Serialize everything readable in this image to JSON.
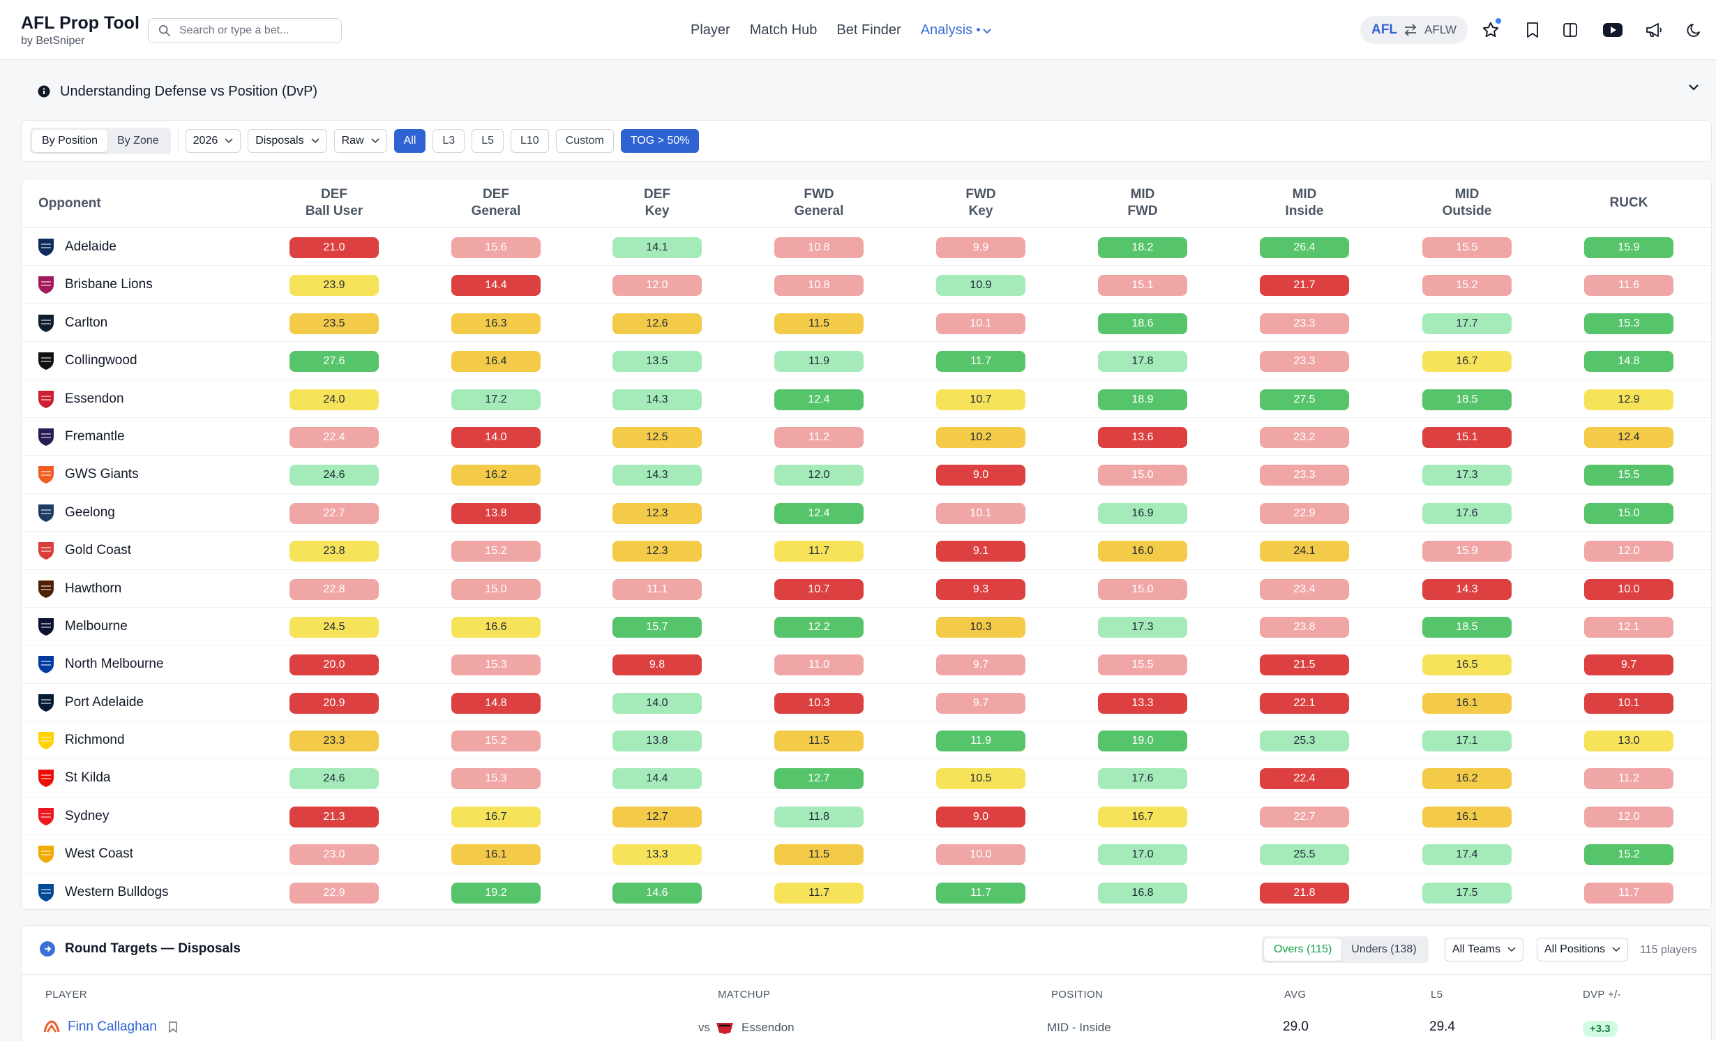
{
  "app": {
    "title": "AFL Prop Tool",
    "subtitle": "by BetSniper"
  },
  "search": {
    "placeholder": "Search or type a bet..."
  },
  "nav": {
    "links": [
      "Player",
      "Match Hub",
      "Bet Finder",
      "Analysis"
    ],
    "active": "Analysis"
  },
  "league": {
    "active": "AFL",
    "other": "AFLW"
  },
  "toolbar_icons": [
    "star-icon",
    "bookmark-icon",
    "columns-icon",
    "youtube-icon",
    "megaphone-icon",
    "moon-icon"
  ],
  "info": {
    "title": "Understanding Defense vs Position (DvP)"
  },
  "filters": {
    "view_options": [
      "By Position",
      "By Zone"
    ],
    "view_selected": "By Position",
    "season": "2026",
    "stat": "Disposals",
    "mode": "Raw",
    "ranges": [
      "All",
      "L3",
      "L5",
      "L10",
      "Custom"
    ],
    "range_selected": "All",
    "tog": "TOG > 50%"
  },
  "dvp": {
    "opponent_header": "Opponent",
    "columns": [
      {
        "line1": "DEF",
        "line2": "Ball User"
      },
      {
        "line1": "DEF",
        "line2": "General"
      },
      {
        "line1": "DEF",
        "line2": "Key"
      },
      {
        "line1": "FWD",
        "line2": "General"
      },
      {
        "line1": "FWD",
        "line2": "Key"
      },
      {
        "line1": "MID",
        "line2": "FWD"
      },
      {
        "line1": "MID",
        "line2": "Inside"
      },
      {
        "line1": "MID",
        "line2": "Outside"
      },
      {
        "line1": "",
        "line2": "RUCK"
      }
    ],
    "colors": {
      "red": "#dc4040",
      "lred": "#f1a6a6",
      "yel": "#f7e35a",
      "org": "#f4cb48",
      "lgrn": "#a5ebba",
      "grn": "#56c46a"
    },
    "rows": [
      {
        "team": "Adelaide",
        "logo": "#0f2a5c",
        "values": [
          "21.0",
          "15.6",
          "14.1",
          "10.8",
          "9.9",
          "18.2",
          "26.4",
          "15.5",
          "15.9"
        ],
        "colors": [
          "red",
          "lred",
          "lgrn",
          "lred",
          "lred",
          "grn",
          "grn",
          "lred",
          "grn"
        ]
      },
      {
        "team": "Brisbane Lions",
        "logo": "#a3195b",
        "values": [
          "23.9",
          "14.4",
          "12.0",
          "10.8",
          "10.9",
          "15.1",
          "21.7",
          "15.2",
          "11.6"
        ],
        "colors": [
          "yel",
          "red",
          "lred",
          "lred",
          "lgrn",
          "lred",
          "red",
          "lred",
          "lred"
        ]
      },
      {
        "team": "Carlton",
        "logo": "#0e1e2d",
        "values": [
          "23.5",
          "16.3",
          "12.6",
          "11.5",
          "10.1",
          "18.6",
          "23.3",
          "17.7",
          "15.3"
        ],
        "colors": [
          "org",
          "org",
          "org",
          "org",
          "lred",
          "grn",
          "lred",
          "lgrn",
          "grn"
        ]
      },
      {
        "team": "Collingwood",
        "logo": "#111111",
        "values": [
          "27.6",
          "16.4",
          "13.5",
          "11.9",
          "11.7",
          "17.8",
          "23.3",
          "16.7",
          "14.8"
        ],
        "colors": [
          "grn",
          "org",
          "lgrn",
          "lgrn",
          "grn",
          "lgrn",
          "lred",
          "yel",
          "grn"
        ]
      },
      {
        "team": "Essendon",
        "logo": "#cc2031",
        "values": [
          "24.0",
          "17.2",
          "14.3",
          "12.4",
          "10.7",
          "18.9",
          "27.5",
          "18.5",
          "12.9"
        ],
        "colors": [
          "yel",
          "lgrn",
          "lgrn",
          "grn",
          "yel",
          "grn",
          "grn",
          "grn",
          "yel"
        ]
      },
      {
        "team": "Fremantle",
        "logo": "#2a1a54",
        "values": [
          "22.4",
          "14.0",
          "12.5",
          "11.2",
          "10.2",
          "13.6",
          "23.2",
          "15.1",
          "12.4"
        ],
        "colors": [
          "lred",
          "red",
          "org",
          "lred",
          "org",
          "red",
          "lred",
          "red",
          "org"
        ]
      },
      {
        "team": "GWS Giants",
        "logo": "#f15c22",
        "values": [
          "24.6",
          "16.2",
          "14.3",
          "12.0",
          "9.0",
          "15.0",
          "23.3",
          "17.3",
          "15.5"
        ],
        "colors": [
          "lgrn",
          "org",
          "lgrn",
          "lgrn",
          "red",
          "lred",
          "lred",
          "lgrn",
          "grn"
        ]
      },
      {
        "team": "Geelong",
        "logo": "#1c3c63",
        "values": [
          "22.7",
          "13.8",
          "12.3",
          "12.4",
          "10.1",
          "16.9",
          "22.9",
          "17.6",
          "15.0"
        ],
        "colors": [
          "lred",
          "red",
          "org",
          "grn",
          "lred",
          "lgrn",
          "lred",
          "lgrn",
          "grn"
        ]
      },
      {
        "team": "Gold Coast",
        "logo": "#d93e39",
        "values": [
          "23.8",
          "15.2",
          "12.3",
          "11.7",
          "9.1",
          "16.0",
          "24.1",
          "15.9",
          "12.0"
        ],
        "colors": [
          "yel",
          "lred",
          "org",
          "yel",
          "red",
          "org",
          "org",
          "lred",
          "lred"
        ]
      },
      {
        "team": "Hawthorn",
        "logo": "#4d2004",
        "values": [
          "22.8",
          "15.0",
          "11.1",
          "10.7",
          "9.3",
          "15.0",
          "23.4",
          "14.3",
          "10.0"
        ],
        "colors": [
          "lred",
          "lred",
          "lred",
          "red",
          "red",
          "lred",
          "lred",
          "red",
          "red"
        ]
      },
      {
        "team": "Melbourne",
        "logo": "#0f1131",
        "values": [
          "24.5",
          "16.6",
          "15.7",
          "12.2",
          "10.3",
          "17.3",
          "23.8",
          "18.5",
          "12.1"
        ],
        "colors": [
          "yel",
          "yel",
          "grn",
          "grn",
          "org",
          "lgrn",
          "lred",
          "grn",
          "lred"
        ]
      },
      {
        "team": "North Melbourne",
        "logo": "#013b9f",
        "values": [
          "20.0",
          "15.3",
          "9.8",
          "11.0",
          "9.7",
          "15.5",
          "21.5",
          "16.5",
          "9.7"
        ],
        "colors": [
          "red",
          "lred",
          "red",
          "lred",
          "lred",
          "lred",
          "red",
          "yel",
          "red"
        ]
      },
      {
        "team": "Port Adelaide",
        "logo": "#061a33",
        "values": [
          "20.9",
          "14.8",
          "14.0",
          "10.3",
          "9.7",
          "13.3",
          "22.1",
          "16.1",
          "10.1"
        ],
        "colors": [
          "red",
          "red",
          "lgrn",
          "red",
          "lred",
          "red",
          "red",
          "org",
          "red"
        ]
      },
      {
        "team": "Richmond",
        "logo": "#ffd200",
        "values": [
          "23.3",
          "15.2",
          "13.8",
          "11.5",
          "11.9",
          "19.0",
          "25.3",
          "17.1",
          "13.0"
        ],
        "colors": [
          "org",
          "lred",
          "lgrn",
          "org",
          "grn",
          "grn",
          "lgrn",
          "lgrn",
          "yel"
        ]
      },
      {
        "team": "St Kilda",
        "logo": "#ed0f05",
        "values": [
          "24.6",
          "15.3",
          "14.4",
          "12.7",
          "10.5",
          "17.6",
          "22.4",
          "16.2",
          "11.2"
        ],
        "colors": [
          "lgrn",
          "lred",
          "lgrn",
          "grn",
          "yel",
          "lgrn",
          "red",
          "org",
          "lred"
        ]
      },
      {
        "team": "Sydney",
        "logo": "#ed171f",
        "values": [
          "21.3",
          "16.7",
          "12.7",
          "11.8",
          "9.0",
          "16.7",
          "22.7",
          "16.1",
          "12.0"
        ],
        "colors": [
          "red",
          "yel",
          "org",
          "lgrn",
          "red",
          "yel",
          "lred",
          "org",
          "lred"
        ]
      },
      {
        "team": "West Coast",
        "logo": "#f2a900",
        "values": [
          "23.0",
          "16.1",
          "13.3",
          "11.5",
          "10.0",
          "17.0",
          "25.5",
          "17.4",
          "15.2"
        ],
        "colors": [
          "lred",
          "org",
          "yel",
          "org",
          "lred",
          "lgrn",
          "lgrn",
          "lgrn",
          "grn"
        ]
      },
      {
        "team": "Western Bulldogs",
        "logo": "#014896",
        "values": [
          "22.9",
          "19.2",
          "14.6",
          "11.7",
          "11.7",
          "16.8",
          "21.8",
          "17.5",
          "11.7"
        ],
        "colors": [
          "lred",
          "grn",
          "grn",
          "yel",
          "grn",
          "lgrn",
          "red",
          "lgrn",
          "lred"
        ]
      }
    ]
  },
  "round_targets": {
    "title": "Round Targets — Disposals",
    "overs": "Overs (115)",
    "unders": "Unders (138)",
    "teams_filter": "All Teams",
    "positions_filter": "All Positions",
    "count": "115 players",
    "columns": [
      "PLAYER",
      "MATCHUP",
      "POSITION",
      "AVG",
      "L5",
      "DVP +/-"
    ],
    "rows": [
      {
        "player": "Finn Callaghan",
        "vs": "vs",
        "opponent": "Essendon",
        "position": "MID - Inside",
        "avg": "29.0",
        "l5": "29.4",
        "dvp": "+3.3"
      }
    ]
  }
}
